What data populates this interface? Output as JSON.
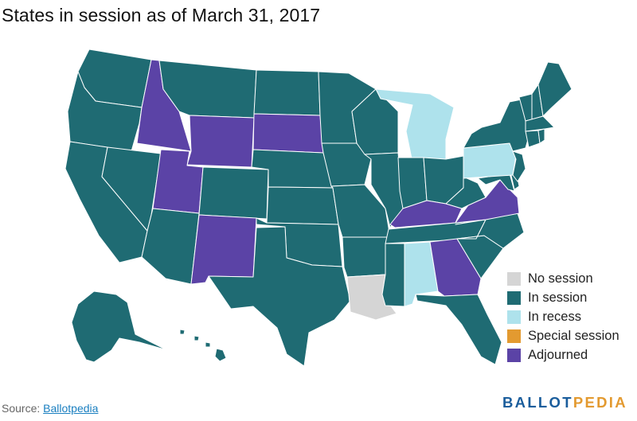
{
  "title": "States in session as of March 31, 2017",
  "legend": [
    {
      "label": "No session",
      "color": "#d5d5d5"
    },
    {
      "label": "In session",
      "color": "#1f6b73"
    },
    {
      "label": "In recess",
      "color": "#aee2ec"
    },
    {
      "label": "Special session",
      "color": "#e39a30"
    },
    {
      "label": "Adjourned",
      "color": "#5b43a6"
    }
  ],
  "status_colors": {
    "none": "#d5d5d5",
    "in_session": "#1f6b73",
    "recess": "#aee2ec",
    "special": "#e39a30",
    "adjourned": "#5b43a6"
  },
  "state_status": {
    "WA": "in_session",
    "OR": "in_session",
    "CA": "in_session",
    "NV": "in_session",
    "ID": "adjourned",
    "MT": "in_session",
    "WY": "adjourned",
    "UT": "adjourned",
    "AZ": "in_session",
    "CO": "in_session",
    "NM": "adjourned",
    "ND": "in_session",
    "SD": "adjourned",
    "NE": "in_session",
    "KS": "in_session",
    "OK": "in_session",
    "TX": "in_session",
    "MN": "in_session",
    "IA": "in_session",
    "MO": "in_session",
    "AR": "in_session",
    "LA": "none",
    "WI": "in_session",
    "IL": "in_session",
    "MI": "recess",
    "IN": "in_session",
    "OH": "in_session",
    "KY": "adjourned",
    "TN": "in_session",
    "MS": "in_session",
    "AL": "recess",
    "GA": "adjourned",
    "FL": "in_session",
    "SC": "in_session",
    "NC": "in_session",
    "VA": "adjourned",
    "WV": "in_session",
    "PA": "recess",
    "NY": "in_session",
    "VT": "in_session",
    "NH": "in_session",
    "ME": "in_session",
    "MA": "in_session",
    "RI": "in_session",
    "CT": "in_session",
    "NJ": "in_session",
    "DE": "in_session",
    "MD": "in_session",
    "AK": "in_session",
    "HI": "in_session"
  },
  "source": {
    "prefix": "Source: ",
    "link": "Ballotpedia"
  },
  "brand": {
    "part1": "BALLOT",
    "part2": "PEDIA",
    "color1": "#1a5d9c",
    "color2": "#e39a30"
  }
}
